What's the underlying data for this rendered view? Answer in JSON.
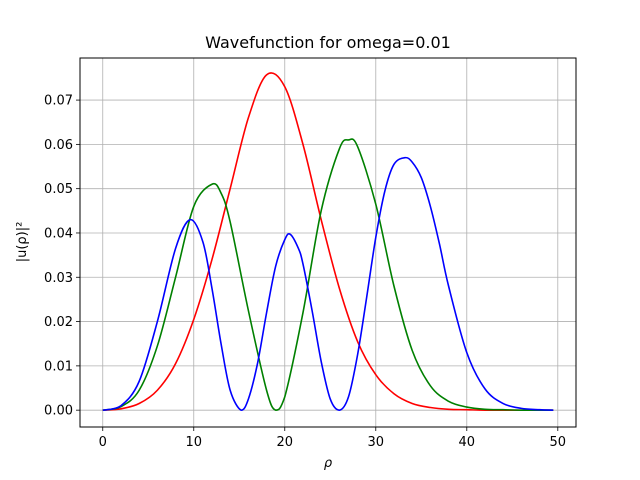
{
  "chart_data": {
    "type": "line",
    "title": "Wavefunction for omega=0.01",
    "xlabel": "ρ",
    "ylabel": "|u(ρ)|²",
    "xlim": [
      -2.5,
      52
    ],
    "ylim": [
      -0.0038,
      0.0795
    ],
    "grid": true,
    "x_ticks": [
      0,
      10,
      20,
      30,
      40,
      50
    ],
    "x_tick_labels": [
      "0",
      "10",
      "20",
      "30",
      "40",
      "50"
    ],
    "y_ticks": [
      0.0,
      0.01,
      0.02,
      0.03,
      0.04,
      0.05,
      0.06,
      0.07
    ],
    "y_tick_labels": [
      "0.00",
      "0.01",
      "0.02",
      "0.03",
      "0.04",
      "0.05",
      "0.06",
      "0.07"
    ],
    "series": [
      {
        "color": "#ff0000",
        "x": [
          0,
          2,
          4,
          6,
          8,
          10,
          12,
          14,
          16,
          18,
          20,
          22,
          24,
          26,
          28,
          30,
          32,
          34,
          36,
          38,
          40,
          42,
          44,
          46,
          48,
          49.5
        ],
        "y": [
          0.0,
          0.0003,
          0.0015,
          0.0045,
          0.0105,
          0.0205,
          0.034,
          0.05,
          0.066,
          0.0757,
          0.073,
          0.06,
          0.043,
          0.0275,
          0.0155,
          0.008,
          0.0037,
          0.0015,
          0.0006,
          0.0002,
          0.0001,
          0.0,
          0.0,
          0.0,
          0.0,
          0.0
        ]
      },
      {
        "color": "#008000",
        "x": [
          0,
          2,
          4,
          6,
          8,
          10,
          12,
          13,
          14,
          16,
          18,
          19,
          20,
          22,
          24,
          26,
          27,
          28,
          30,
          32,
          34,
          36,
          38,
          40,
          42,
          44,
          46,
          48,
          49.5
        ],
        "y": [
          0.0,
          0.0008,
          0.0045,
          0.0145,
          0.03,
          0.046,
          0.051,
          0.049,
          0.0425,
          0.0225,
          0.0045,
          0.0,
          0.003,
          0.022,
          0.045,
          0.059,
          0.061,
          0.0595,
          0.0465,
          0.028,
          0.0135,
          0.0055,
          0.002,
          0.0007,
          0.0002,
          0.0001,
          0.0,
          0.0,
          0.0
        ]
      },
      {
        "color": "#0000ff",
        "x": [
          0,
          2,
          4,
          6,
          8,
          9.6,
          11,
          12,
          13,
          14,
          15.2,
          16,
          17,
          18,
          19,
          20,
          20.6,
          21.5,
          22,
          23,
          24,
          25,
          26,
          27,
          28,
          29,
          30,
          31,
          32,
          33.2,
          34,
          35,
          36,
          37,
          38,
          40,
          42,
          44,
          46,
          48,
          49.5
        ],
        "y": [
          0.0,
          0.001,
          0.0065,
          0.02,
          0.0365,
          0.043,
          0.038,
          0.0275,
          0.015,
          0.0045,
          0.0,
          0.0025,
          0.0105,
          0.022,
          0.0325,
          0.0385,
          0.0397,
          0.0365,
          0.033,
          0.0225,
          0.011,
          0.0025,
          0.0,
          0.003,
          0.0125,
          0.0255,
          0.039,
          0.0495,
          0.0555,
          0.057,
          0.056,
          0.0525,
          0.046,
          0.0375,
          0.028,
          0.013,
          0.0048,
          0.0015,
          0.0004,
          0.0001,
          0.0
        ]
      }
    ]
  }
}
